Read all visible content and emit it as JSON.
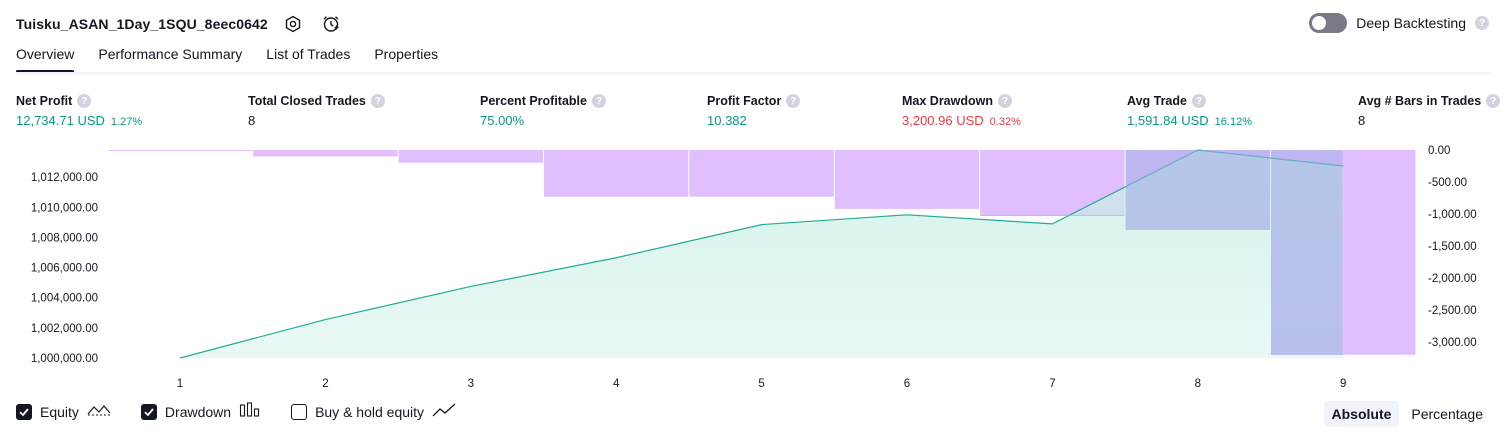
{
  "header": {
    "title": "Tuisku_ASAN_1Day_1SQU_8eec0642",
    "deep_backtesting_label": "Deep Backtesting",
    "help_glyph": "?"
  },
  "tabs": [
    {
      "label": "Overview",
      "active": true
    },
    {
      "label": "Performance Summary",
      "active": false
    },
    {
      "label": "List of Trades",
      "active": false
    },
    {
      "label": "Properties",
      "active": false
    }
  ],
  "metrics": [
    {
      "label": "Net Profit",
      "value": "12,734.71 USD",
      "pct": "1.27%",
      "tone": "pos"
    },
    {
      "label": "Total Closed Trades",
      "value": "8",
      "pct": "",
      "tone": "neu"
    },
    {
      "label": "Percent Profitable",
      "value": "75.00%",
      "pct": "",
      "tone": "pos"
    },
    {
      "label": "Profit Factor",
      "value": "10.382",
      "pct": "",
      "tone": "pos"
    },
    {
      "label": "Max Drawdown",
      "value": "3,200.96 USD",
      "pct": "0.32%",
      "tone": "neg"
    },
    {
      "label": "Avg Trade",
      "value": "1,591.84 USD",
      "pct": "16.12%",
      "tone": "pos"
    },
    {
      "label": "Avg # Bars in Trades",
      "value": "8",
      "pct": "",
      "tone": "neu"
    }
  ],
  "chart_data": {
    "type": "line",
    "x": [
      1,
      2,
      3,
      4,
      5,
      6,
      7,
      8,
      9
    ],
    "series": [
      {
        "name": "Equity",
        "type": "area",
        "axis": "left",
        "values": [
          1000000,
          1002550,
          1004750,
          1006650,
          1008850,
          1009500,
          1008900,
          1013800,
          1012734.71
        ]
      },
      {
        "name": "Drawdown",
        "type": "bar",
        "axis": "right",
        "values": [
          0,
          -100,
          -200,
          -730,
          -730,
          -920,
          -1030,
          -1250,
          -3200.96
        ]
      }
    ],
    "left_axis": {
      "ticks": [
        "1,000,000.00",
        "1,002,000.00",
        "1,004,000.00",
        "1,006,000.00",
        "1,008,000.00",
        "1,010,000.00",
        "1,012,000.00"
      ],
      "range": [
        1000000,
        1013800
      ]
    },
    "right_axis": {
      "ticks": [
        "0.00",
        "-500.00",
        "-1,000.00",
        "-1,500.00",
        "-2,000.00",
        "-2,500.00",
        "-3,000.00"
      ],
      "range": [
        -3250,
        0
      ]
    },
    "x_ticks": [
      "1",
      "2",
      "3",
      "4",
      "5",
      "6",
      "7",
      "8",
      "9"
    ],
    "colors": {
      "equity_line": "#22ab94",
      "equity_fill": "#c8eee5",
      "drawdown": "#e1bffe",
      "overlap": "#a0aee5"
    }
  },
  "legend": {
    "items": [
      {
        "label": "Equity",
        "checked": true,
        "icon": "equity-line-icon"
      },
      {
        "label": "Drawdown",
        "checked": true,
        "icon": "drawdown-bars-icon"
      },
      {
        "label": "Buy & hold equity",
        "checked": false,
        "icon": "buy-hold-line-icon"
      }
    ]
  },
  "mode": {
    "absolute": "Absolute",
    "percentage": "Percentage"
  }
}
